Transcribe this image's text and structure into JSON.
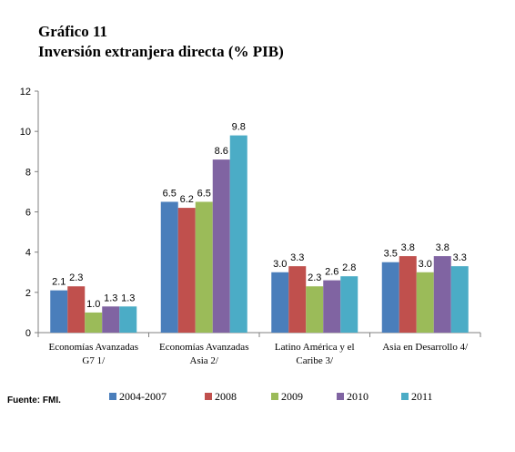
{
  "chart_data": {
    "type": "bar",
    "title": "Gráfico 11",
    "subtitle": "Inversión extranjera directa (% PIB)",
    "categories": [
      [
        "Economías Avanzadas",
        "G7 1/"
      ],
      [
        "Economías Avanzadas",
        "Asia 2/"
      ],
      [
        "Latino América  y el",
        "Caribe 3/"
      ],
      [
        "Asia en Desarrollo 4/"
      ]
    ],
    "series": [
      {
        "name": "2004-2007",
        "color": "#4a7ebb",
        "values": [
          2.1,
          6.5,
          3.0,
          3.5
        ]
      },
      {
        "name": "2008",
        "color": "#c0504d",
        "values": [
          2.3,
          6.2,
          3.3,
          3.8
        ]
      },
      {
        "name": "2009",
        "color": "#9bbb59",
        "values": [
          1.0,
          6.5,
          2.3,
          3.0
        ]
      },
      {
        "name": "2010",
        "color": "#8064a2",
        "values": [
          1.3,
          8.6,
          2.6,
          3.8
        ]
      },
      {
        "name": "2011",
        "color": "#4bacc6",
        "values": [
          1.3,
          9.8,
          2.8,
          3.3
        ]
      }
    ],
    "ylim": [
      0,
      12
    ],
    "yticks": [
      0,
      2,
      4,
      6,
      8,
      10,
      12
    ],
    "grid": false,
    "legend_position": "bottom",
    "source": "Fuente: FMI."
  }
}
